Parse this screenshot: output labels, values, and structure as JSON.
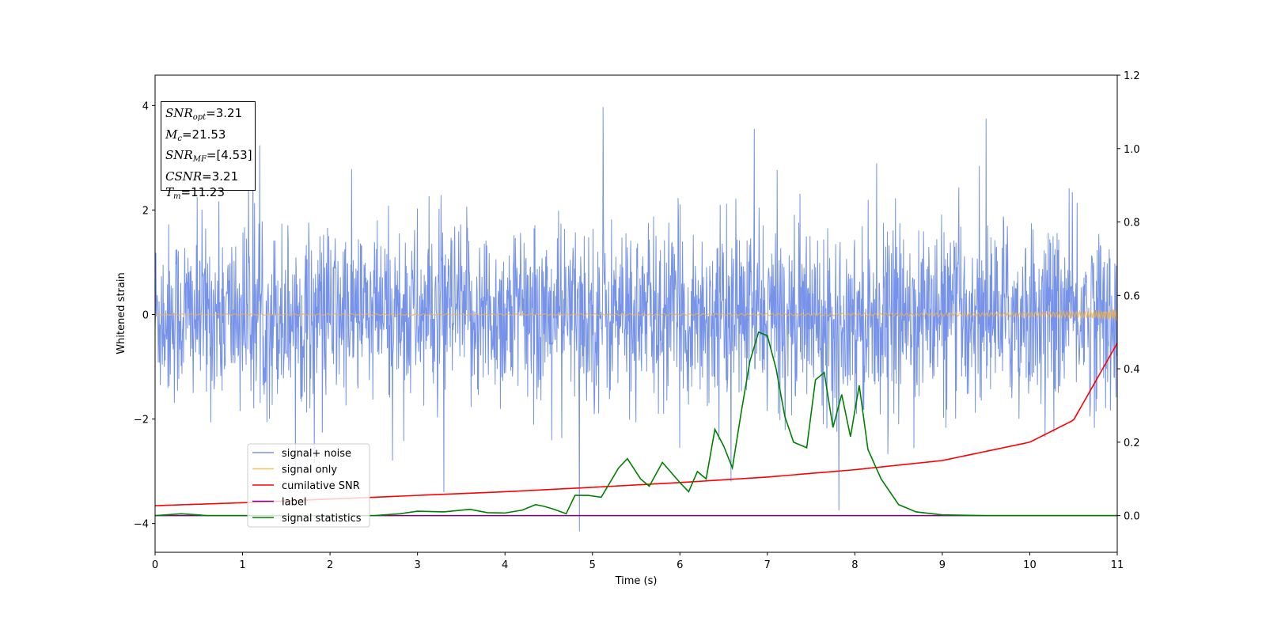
{
  "chart_data": {
    "type": "line",
    "xlabel": "Time (s)",
    "ylabel": "Whitened strain",
    "xlim": [
      0,
      11
    ],
    "ylim": [
      -4.55,
      4.58
    ],
    "y2lim": [
      -0.1,
      1.2
    ],
    "x_ticks": [
      "0",
      "1",
      "2",
      "3",
      "4",
      "5",
      "6",
      "7",
      "8",
      "9",
      "10",
      "11"
    ],
    "y_ticks": [
      "4",
      "2",
      "0",
      "−2",
      "−4"
    ],
    "y2_ticks": [
      "1.2",
      "1.0",
      "0.8",
      "0.6",
      "0.4",
      "0.2",
      "0.0"
    ],
    "legend_location": "lower-left",
    "grid": false,
    "stats_box": {
      "snr_opt": "=3.21",
      "mc": "=21.53",
      "snr_mf": "=[4.53]",
      "csnr": "=3.21",
      "tm": "=11.23"
    },
    "series": [
      {
        "name": "signal+ noise",
        "axis": "left",
        "color": "#4169e1",
        "description_values": "noise-dominated whitened strain, roughly within [-2.5, 2.5], peaks near 4.0 at t=5.12 and -4.15 at t=4.85",
        "peaks": [
          {
            "x": 5.12,
            "y": 3.97
          },
          {
            "x": 4.85,
            "y": -4.15
          },
          {
            "x": 9.5,
            "y": 3.75
          },
          {
            "x": 6.85,
            "y": 3.55
          },
          {
            "x": 7.82,
            "y": -3.75
          },
          {
            "x": 3.3,
            "y": -3.4
          },
          {
            "x": 1.12,
            "y": 3.3
          }
        ]
      },
      {
        "name": "signal only",
        "axis": "left",
        "color": "#f5b041",
        "chirp_end_amplitude": 0.12
      },
      {
        "name": "cumilative SNR",
        "axis": "right",
        "color": "#ff0000",
        "x": [
          0,
          1,
          2,
          3,
          4,
          5,
          6,
          7,
          8,
          9,
          10,
          10.5,
          11
        ],
        "y": [
          0.027,
          0.035,
          0.045,
          0.055,
          0.065,
          0.077,
          0.09,
          0.105,
          0.125,
          0.15,
          0.2,
          0.26,
          0.47
        ]
      },
      {
        "name": "label",
        "axis": "right",
        "color": "#800080",
        "x": [
          0,
          11
        ],
        "y": [
          0.0,
          0.0
        ]
      },
      {
        "name": "signal statistics",
        "axis": "right",
        "color": "#008000",
        "x": [
          0,
          0.3,
          0.6,
          1.0,
          1.5,
          2.0,
          2.5,
          2.8,
          3.0,
          3.3,
          3.6,
          3.8,
          4.0,
          4.2,
          4.35,
          4.45,
          4.55,
          4.7,
          4.8,
          4.95,
          5.1,
          5.3,
          5.4,
          5.55,
          5.65,
          5.8,
          6.0,
          6.1,
          6.2,
          6.3,
          6.4,
          6.5,
          6.6,
          6.7,
          6.8,
          6.9,
          7.0,
          7.1,
          7.2,
          7.3,
          7.45,
          7.55,
          7.65,
          7.75,
          7.85,
          7.95,
          8.05,
          8.15,
          8.3,
          8.5,
          8.7,
          9.0,
          9.5,
          10.0,
          11.0
        ],
        "y": [
          0.0,
          0.005,
          0.0,
          0.0,
          0.0,
          0.0,
          0.0,
          0.005,
          0.012,
          0.01,
          0.017,
          0.008,
          0.007,
          0.015,
          0.03,
          0.025,
          0.018,
          0.005,
          0.055,
          0.055,
          0.05,
          0.13,
          0.155,
          0.1,
          0.08,
          0.145,
          0.09,
          0.065,
          0.12,
          0.1,
          0.235,
          0.19,
          0.13,
          0.28,
          0.42,
          0.5,
          0.49,
          0.4,
          0.27,
          0.2,
          0.185,
          0.37,
          0.39,
          0.24,
          0.33,
          0.215,
          0.355,
          0.18,
          0.1,
          0.03,
          0.01,
          0.002,
          0.0,
          0.0,
          0.0
        ]
      }
    ]
  }
}
